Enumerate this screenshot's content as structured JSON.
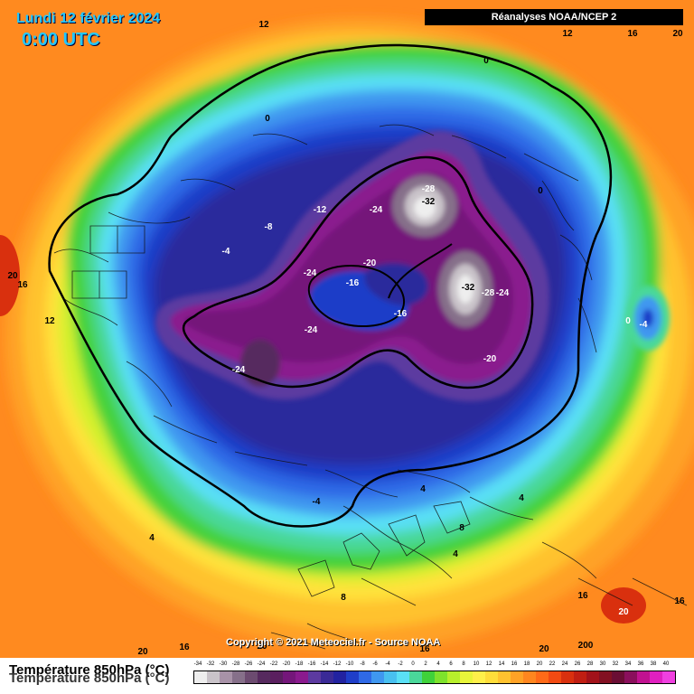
{
  "header": {
    "date": "Lundi 12 février 2024",
    "time": "0:00 UTC",
    "source": "Réanalyses NOAA/NCEP 2"
  },
  "footer": {
    "copyright": "Copyright © 2021 Meteociel.fr - Source NOAA",
    "variable": "Température 850hPa (°C)"
  },
  "legend": {
    "ticks": [
      "-34",
      "-32",
      "-30",
      "-28",
      "-26",
      "-24",
      "-22",
      "-20",
      "-18",
      "-16",
      "-14",
      "-12",
      "-10",
      "-8",
      "-6",
      "-4",
      "-2",
      "0",
      "2",
      "4",
      "6",
      "8",
      "10",
      "12",
      "14",
      "16",
      "18",
      "20",
      "22",
      "24",
      "26",
      "28",
      "30",
      "32",
      "34",
      "36",
      "38",
      "40"
    ],
    "colors": [
      "#eeeeee",
      "#c9c3c9",
      "#a892a8",
      "#86708a",
      "#6c4b70",
      "#562a5e",
      "#5a1f5f",
      "#74167a",
      "#8a1a8e",
      "#5c3aa0",
      "#3a2a96",
      "#2222a0",
      "#1f3ec8",
      "#2f69e6",
      "#3f97f0",
      "#48c0f0",
      "#5ae0f6",
      "#4ad89a",
      "#3fd23a",
      "#7ee22c",
      "#b7ef2c",
      "#e8f53a",
      "#fff04a",
      "#ffdd3a",
      "#ffc22f",
      "#ffa226",
      "#ff861f",
      "#ff6a18",
      "#f24a12",
      "#d9300e",
      "#c01e12",
      "#a2121a",
      "#821022",
      "#6a0d34",
      "#8a0f5c",
      "#c01290",
      "#e020c0",
      "#f040e0"
    ]
  },
  "map_labels": [
    {
      "id": "iso-12-top",
      "text": "12"
    },
    {
      "id": "iso-12-topright",
      "text": "12"
    },
    {
      "id": "iso-16-topright",
      "text": "16"
    },
    {
      "id": "iso-20-corner",
      "text": "20"
    },
    {
      "id": "iso-0-north",
      "text": "0"
    },
    {
      "id": "iso-0-nw",
      "text": "0"
    },
    {
      "id": "iso-0-ne",
      "text": "0"
    },
    {
      "id": "iso-m28",
      "text": "-28"
    },
    {
      "id": "iso-m32-a",
      "text": "-32"
    },
    {
      "id": "iso-m24-n",
      "text": "-24"
    },
    {
      "id": "iso-m12-n",
      "text": "-12"
    },
    {
      "id": "iso-m8-w",
      "text": "-8"
    },
    {
      "id": "iso-m4-w",
      "text": "-4"
    },
    {
      "id": "iso-20-left",
      "text": "20"
    },
    {
      "id": "iso-16-left",
      "text": "16"
    },
    {
      "id": "iso-12-left",
      "text": "12"
    },
    {
      "id": "iso-m20-c",
      "text": "-20"
    },
    {
      "id": "iso-m24-c",
      "text": "-24"
    },
    {
      "id": "iso-m16-c",
      "text": "-16"
    },
    {
      "id": "iso-m32-b",
      "text": "-32"
    },
    {
      "id": "iso-m28-b",
      "text": "-28"
    },
    {
      "id": "iso-m24-b",
      "text": "-24"
    },
    {
      "id": "iso-m16-c2",
      "text": "-16"
    },
    {
      "id": "iso-m24-w",
      "text": "-24"
    },
    {
      "id": "iso-m24-sw",
      "text": "-24"
    },
    {
      "id": "iso-m20-e",
      "text": "-20"
    },
    {
      "id": "iso-0-e",
      "text": "0"
    },
    {
      "id": "iso-m4-e",
      "text": "-4"
    },
    {
      "id": "iso-m4-s",
      "text": "-4"
    },
    {
      "id": "iso-4-s1",
      "text": "4"
    },
    {
      "id": "iso-4-s2",
      "text": "4"
    },
    {
      "id": "iso-4-s3",
      "text": "4"
    },
    {
      "id": "iso-8-s",
      "text": "8"
    },
    {
      "id": "iso-4-sw",
      "text": "4"
    },
    {
      "id": "iso-8-bottom",
      "text": "8"
    },
    {
      "id": "iso-16-se",
      "text": "16"
    },
    {
      "id": "iso-16-right",
      "text": "16"
    },
    {
      "id": "iso-20-se",
      "text": "20"
    },
    {
      "id": "iso-20-bl",
      "text": "20"
    },
    {
      "id": "iso-16-bl",
      "text": "16"
    },
    {
      "id": "iso-16-b",
      "text": "16"
    },
    {
      "id": "iso-20-b",
      "text": "20"
    },
    {
      "id": "iso-200-b",
      "text": "200"
    },
    {
      "id": "iso-20-b2",
      "text": "20"
    }
  ]
}
